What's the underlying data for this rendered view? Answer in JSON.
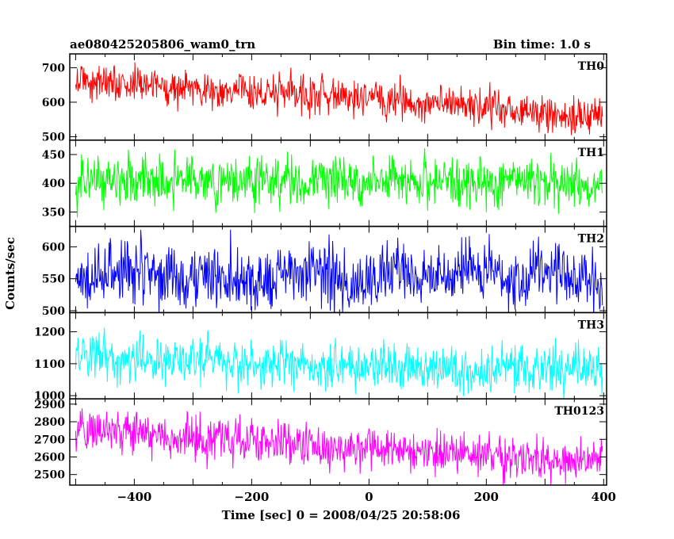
{
  "chart_data": {
    "type": "line",
    "title": "ae080425205806_wam0_trn",
    "subtitle": "Bin time: 1.0 s",
    "xlabel": "Time [sec] 0 = 2008/04/25 20:58:06",
    "ylabel": "Counts/sec",
    "xlim": [
      -510,
      405
    ],
    "xticks": [
      -400,
      -200,
      0,
      200,
      400
    ],
    "xtick_labels": [
      "−400",
      "−200",
      "0",
      "200",
      "400"
    ],
    "grid": false,
    "panels": [
      {
        "name": "TH0",
        "color": "#ff0000",
        "ylim": [
          490,
          740
        ],
        "yticks": [
          500,
          600,
          700
        ],
        "ytick_labels": [
          "500",
          "600",
          "700"
        ],
        "trend": {
          "x": [
            -500,
            -400,
            -300,
            -200,
            -100,
            0,
            100,
            200,
            300,
            400
          ],
          "y": [
            665,
            650,
            640,
            630,
            620,
            610,
            595,
            585,
            570,
            545
          ]
        },
        "noise_sd": 28
      },
      {
        "name": "TH1",
        "color": "#00ff00",
        "ylim": [
          325,
          475
        ],
        "yticks": [
          350,
          400,
          450
        ],
        "ytick_labels": [
          "350",
          "400",
          "450"
        ],
        "trend": {
          "x": [
            -500,
            -250,
            0,
            250,
            400
          ],
          "y": [
            407,
            405,
            403,
            402,
            395
          ]
        },
        "noise_sd": 22
      },
      {
        "name": "TH2",
        "color": "#0000ff",
        "ylim": [
          497,
          632
        ],
        "yticks": [
          500,
          550,
          600
        ],
        "ytick_labels": [
          "500",
          "550",
          "600"
        ],
        "trend": {
          "x": [
            -500,
            -250,
            0,
            250,
            400
          ],
          "y": [
            555,
            555,
            556,
            556,
            555
          ]
        },
        "noise_sd": 24
      },
      {
        "name": "TH3",
        "color": "#00ffff",
        "ylim": [
          990,
          1260
        ],
        "yticks": [
          1000,
          1100,
          1200
        ],
        "ytick_labels": [
          "1000",
          "1100",
          "1200"
        ],
        "trend": {
          "x": [
            -500,
            -300,
            -100,
            100,
            300,
            400
          ],
          "y": [
            1125,
            1110,
            1095,
            1085,
            1080,
            1095
          ]
        },
        "noise_sd": 38
      },
      {
        "name": "TH0123",
        "color": "#ff00ff",
        "ylim": [
          2440,
          2930
        ],
        "yticks": [
          2500,
          2600,
          2700,
          2800,
          2900
        ],
        "ytick_labels": [
          "2500",
          "2600",
          "2700",
          "2800",
          "2900"
        ],
        "trend": {
          "x": [
            -500,
            -400,
            -200,
            0,
            200,
            400
          ],
          "y": [
            2760,
            2730,
            2690,
            2650,
            2610,
            2575
          ]
        },
        "noise_sd": 60
      }
    ]
  }
}
